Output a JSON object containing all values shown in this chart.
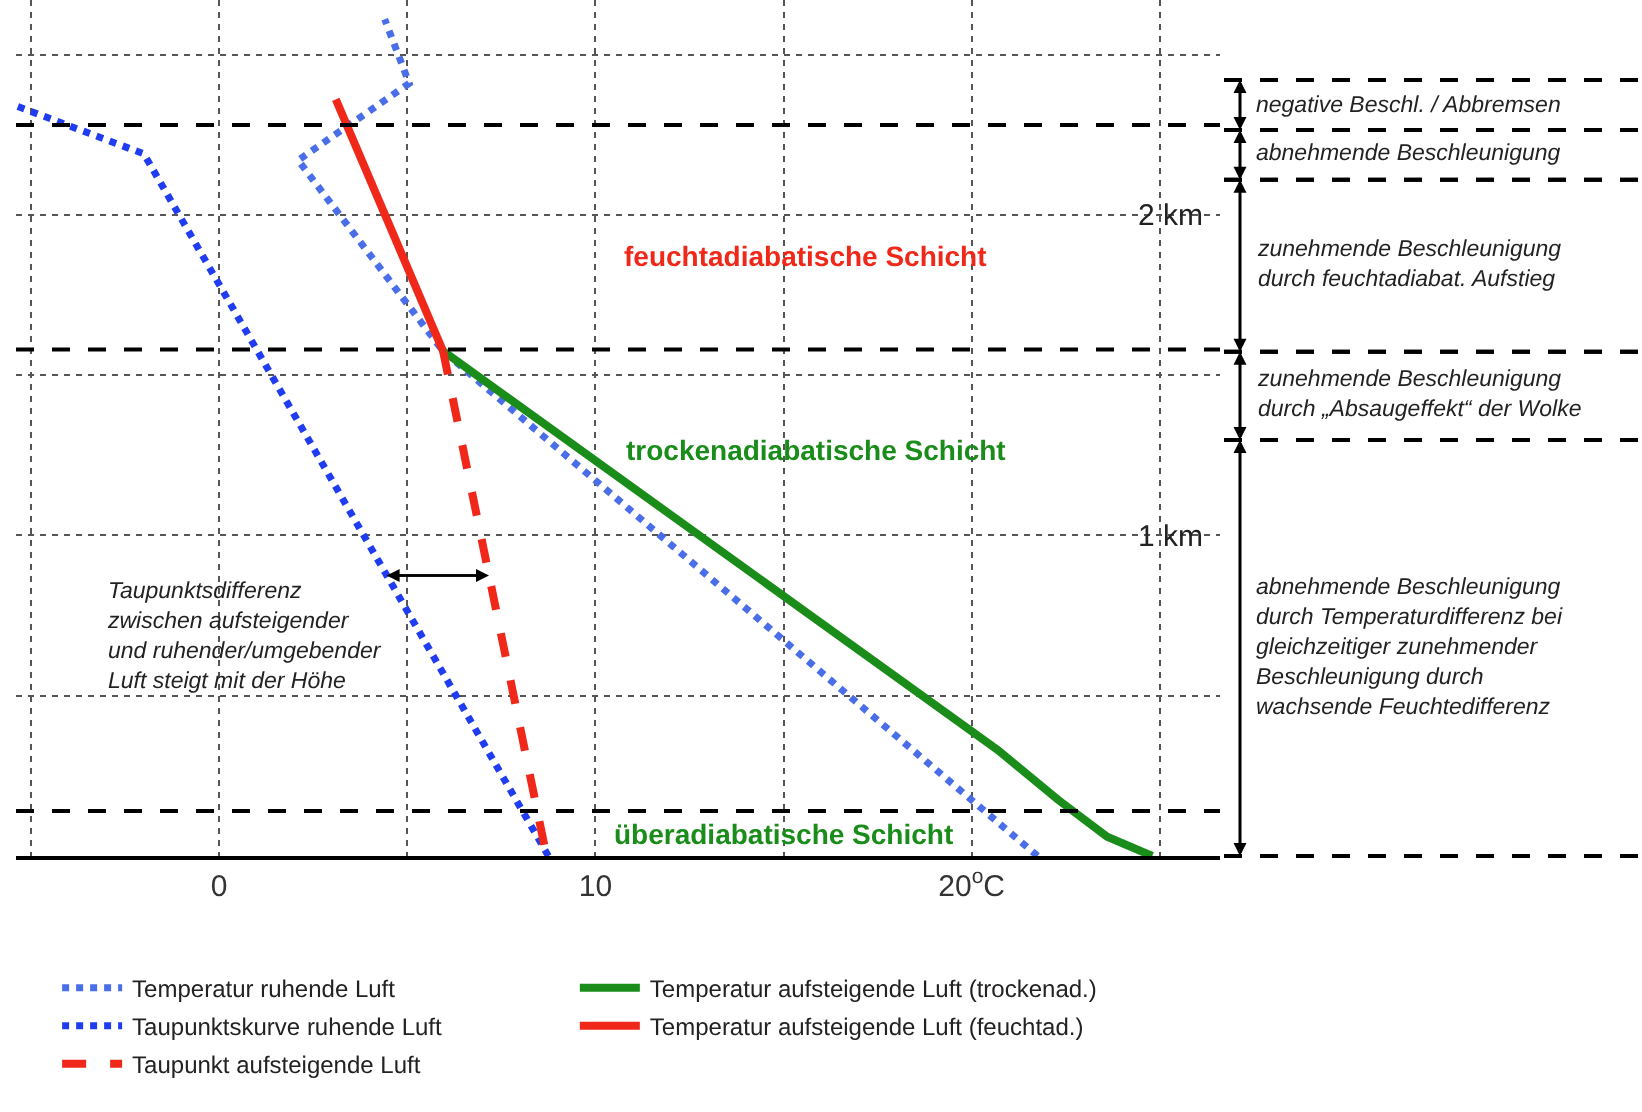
{
  "chart_data": {
    "type": "line",
    "xlim": [
      -5.4,
      26.6
    ],
    "ylim": [
      0,
      2.67
    ],
    "xticks": [
      {
        "value": -5,
        "label": null
      },
      0,
      {
        "value": 5,
        "label": null
      },
      10,
      {
        "value": 15,
        "label": null
      },
      {
        "value": 20,
        "label": "20$^{o}$C"
      },
      {
        "value": 25,
        "label": null
      }
    ],
    "yticks": [
      {
        "value": 0.5,
        "label": null
      },
      {
        "value": 1,
        "label": "1 km"
      },
      {
        "value": 1.5,
        "label": null
      },
      {
        "value": 2,
        "label": "2 km"
      },
      {
        "value": 2.5,
        "label": null
      }
    ],
    "grid": true,
    "legend": "bottom",
    "marker": "none",
    "series": [
      {
        "name": "Temperatur ruhende Luft",
        "color": "#4a6ee8",
        "line_style": "dotted",
        "x": [
          21.75,
          5.95,
          2.1,
          5.05,
          4.4
        ],
        "values": [
          0,
          1.575,
          2.17,
          2.41,
          2.61
        ]
      },
      {
        "name": "Temperatur aufsteigende Luft (trockenad.)",
        "color": "#1a8c1a",
        "line_style": "solid",
        "x": [
          24.8,
          23.6,
          22.3,
          20.7,
          5.95
        ],
        "values": [
          0,
          0.06,
          0.175,
          0.33,
          1.575
        ]
      },
      {
        "name": "Taupunktskurve ruhende Luft",
        "color": "#1f3cf0",
        "line_style": "dotted",
        "x": [
          8.75,
          -2.0,
          -5.4
        ],
        "values": [
          0,
          2.19,
          2.34
        ]
      },
      {
        "name": "Temperatur aufsteigende Luft (feuchtad.)",
        "color": "#f0281a",
        "line_style": "solid",
        "x": [
          5.95,
          3.1
        ],
        "values": [
          1.575,
          2.36
        ]
      },
      {
        "name": "Taupunkt aufsteigende Luft",
        "color": "#f0281a",
        "line_style": "dashed",
        "x": [
          5.95,
          8.7
        ],
        "values": [
          1.575,
          0
        ]
      }
    ],
    "ref_lines": [
      {
        "axis": "y",
        "value": 2.28,
        "line_style": "dashed",
        "color": "#000000"
      },
      {
        "axis": "y",
        "value": 1.58,
        "line_style": "dashed",
        "color": "#000000"
      },
      {
        "axis": "y",
        "value": 0.14,
        "line_style": "dashed",
        "color": "#000000"
      }
    ],
    "annotations": [
      "feuchtadiabatische Schicht",
      "trockenadiabatische Schicht",
      "überadiabatische Schicht",
      {
        "text": "Taupunktsdifferenz\nzwischen aufsteigender\nund ruhender/umgebender\nLuft steigt mit der Höhe",
        "x": 4.45,
        "y": 0.875
      },
      "negative Beschl. / Abbremsen",
      "abnehmende Beschleunigung",
      "zunehmende Beschleunigung\ndurch feuchtadiabat. Aufstieg",
      "zunehmende Beschleunigung\ndurch „Absaugeffekt“ der Wolke",
      "abnehmende Beschleunigung\ndurch Temperaturdifferenz bei\ngleichzeitiger zunehmender\nBeschleunigung durch\nwachsende Feuchtedifferenz"
    ]
  }
}
